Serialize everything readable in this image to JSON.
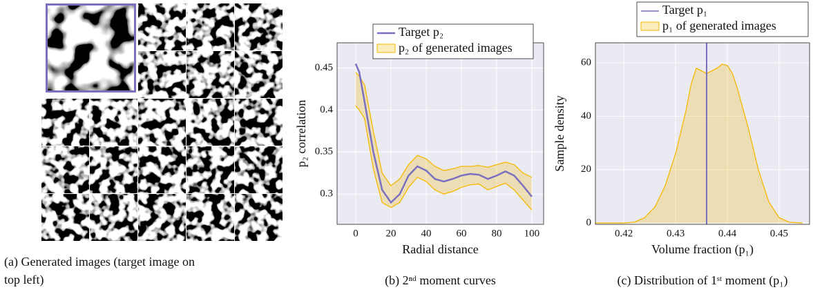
{
  "image_grid": {
    "caption": "(a) Generated images (target image on top left)"
  },
  "chart_data": [
    {
      "type": "line",
      "caption": "(b) 2ⁿᵈ moment curves",
      "xlabel": "Radial distance",
      "ylabel": "p₂ correlation",
      "x": [
        0,
        2,
        5,
        10,
        15,
        20,
        25,
        30,
        35,
        40,
        45,
        50,
        55,
        60,
        65,
        70,
        75,
        80,
        85,
        90,
        95,
        100
      ],
      "series": [
        {
          "name": "Target p₂",
          "color": "#7b6fc0",
          "values": [
            0.455,
            0.445,
            0.41,
            0.35,
            0.305,
            0.29,
            0.3,
            0.322,
            0.333,
            0.328,
            0.318,
            0.315,
            0.318,
            0.322,
            0.324,
            0.323,
            0.318,
            0.322,
            0.327,
            0.322,
            0.31,
            0.297
          ]
        },
        {
          "name": "p₂ of generated images",
          "color": "#f5b800",
          "upper": [
            0.445,
            0.44,
            0.43,
            0.375,
            0.325,
            0.31,
            0.318,
            0.335,
            0.346,
            0.342,
            0.333,
            0.328,
            0.33,
            0.333,
            0.333,
            0.334,
            0.332,
            0.335,
            0.338,
            0.335,
            0.325,
            0.32
          ],
          "lower": [
            0.405,
            0.4,
            0.39,
            0.33,
            0.29,
            0.284,
            0.29,
            0.308,
            0.32,
            0.315,
            0.305,
            0.3,
            0.303,
            0.308,
            0.311,
            0.312,
            0.305,
            0.309,
            0.313,
            0.305,
            0.293,
            0.281
          ]
        }
      ],
      "xlim": [
        -10.6,
        106.7
      ],
      "ylim": [
        0.264,
        0.48
      ],
      "xticks": [
        0,
        20,
        40,
        60,
        80,
        100
      ],
      "yticks": [
        0.3,
        0.35,
        0.4,
        0.45
      ],
      "grid": true
    },
    {
      "type": "area",
      "caption": "(c) Distribution of 1ˢᵗ moment (p₁)",
      "xlabel": "Volume fraction (p₁)",
      "ylabel": "Sample density",
      "x": [
        0.4145,
        0.42,
        0.422,
        0.424,
        0.426,
        0.428,
        0.43,
        0.432,
        0.433,
        0.434,
        0.435,
        0.436,
        0.437,
        0.438,
        0.439,
        0.44,
        0.441,
        0.442,
        0.444,
        0.446,
        0.448,
        0.45,
        0.452,
        0.4545
      ],
      "series": [
        {
          "name": "Target p₁",
          "color": "#7b6fc0",
          "value": 0.436
        },
        {
          "name": "p₁ of generated images",
          "color": "#f5b800",
          "values": [
            0,
            0,
            0.3,
            2,
            6,
            14,
            26,
            42,
            52,
            58,
            57,
            56,
            57,
            58,
            59.5,
            59,
            56,
            50,
            36,
            20,
            8,
            2,
            0.3,
            0
          ]
        }
      ],
      "xlim": [
        0.4145,
        0.4559
      ],
      "ylim": [
        -0.5,
        67.5
      ],
      "xticks": [
        0.42,
        0.43,
        0.44,
        0.45
      ],
      "yticks": [
        0,
        20,
        40,
        60
      ],
      "grid": true
    }
  ]
}
